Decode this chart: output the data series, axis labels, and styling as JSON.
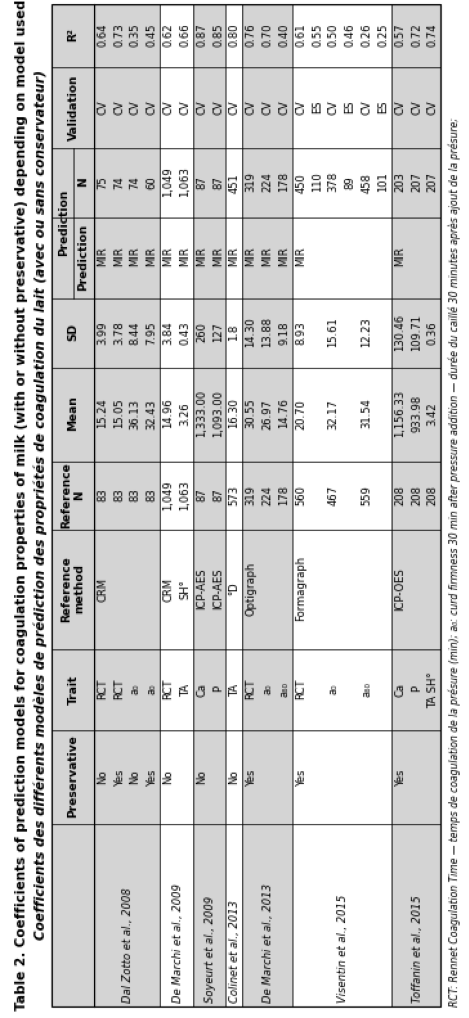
{
  "title_line1": "Table 2. Coefficients of prediction models for coagulation properties of milk (with or without preservative) depending on model used",
  "title_line2": "Coefficients des différents modèles de prédiction des propriétés de coagulation du lait (avec ou sans conservateur)",
  "footnote": "RCT: Rennet Coagulation Time — temps de coagulation de la présure (min); a₀: curd firmness 30 min after pressure addition — durée du caillé 30 minutes après ajout de la présure;",
  "bg_gray": "#d4d4d4",
  "bg_white": "#ffffff",
  "header_top_labels": [
    "",
    "Preservative",
    "Trait",
    "Reference\nmethod",
    "Reference\nN",
    "Mean",
    "SD",
    "Prediction\nPrediction",
    "N",
    "Validation",
    "R²"
  ],
  "col_header_split": [
    false,
    false,
    false,
    false,
    false,
    false,
    false,
    true,
    false,
    false,
    false
  ],
  "row_groups": [
    {
      "author": "Dal Zotto et al., 2008",
      "bg": "gray",
      "rows": [
        {
          "preservative": "No",
          "trait": "RCT",
          "ref_method": "CRM",
          "ref_n": "83",
          "mean": "15.24",
          "sd": "3.99",
          "pred": "MIR",
          "pred_n": "75",
          "valid": "CV",
          "r2": "0.64"
        },
        {
          "preservative": "Yes",
          "trait": "RCT",
          "ref_method": "",
          "ref_n": "83",
          "mean": "15.05",
          "sd": "3.78",
          "pred": "MIR",
          "pred_n": "74",
          "valid": "CV",
          "r2": "0.73"
        },
        {
          "preservative": "No",
          "trait": "a₀",
          "ref_method": "",
          "ref_n": "83",
          "mean": "36.13",
          "sd": "8.44",
          "pred": "MIR",
          "pred_n": "74",
          "valid": "CV",
          "r2": "0.35"
        },
        {
          "preservative": "Yes",
          "trait": "a₀",
          "ref_method": "",
          "ref_n": "83",
          "mean": "32.43",
          "sd": "7.95",
          "pred": "MIR",
          "pred_n": "60",
          "valid": "CV",
          "r2": "0.45"
        }
      ]
    },
    {
      "author": "De Marchi et al., 2009",
      "bg": "white",
      "rows": [
        {
          "preservative": "No",
          "trait": "RCT",
          "ref_method": "CRM",
          "ref_n": "1,049",
          "mean": "14.96",
          "sd": "3.84",
          "pred": "MIR",
          "pred_n": "1,049",
          "valid": "CV",
          "r2": "0.62"
        },
        {
          "preservative": "",
          "trait": "TA",
          "ref_method": "SH°",
          "ref_n": "1,063",
          "mean": "3.26",
          "sd": "0.43",
          "pred": "MIR",
          "pred_n": "1,063",
          "valid": "CV",
          "r2": "0.66"
        }
      ]
    },
    {
      "author": "Soyeurt et al., 2009",
      "bg": "gray",
      "rows": [
        {
          "preservative": "No",
          "trait": "Ca",
          "ref_method": "ICP-AES",
          "ref_n": "87",
          "mean": "1,333.00",
          "sd": "260",
          "pred": "MIR",
          "pred_n": "87",
          "valid": "CV",
          "r2": "0.87"
        },
        {
          "preservative": "",
          "trait": "P",
          "ref_method": "ICP-AES",
          "ref_n": "87",
          "mean": "1,093.00",
          "sd": "127",
          "pred": "MIR",
          "pred_n": "87",
          "valid": "CV",
          "r2": "0.85"
        }
      ]
    },
    {
      "author": "Colinet et al., 2013",
      "bg": "white",
      "rows": [
        {
          "preservative": "No",
          "trait": "TA",
          "ref_method": "°D",
          "ref_n": "573",
          "mean": "16.30",
          "sd": "1.8",
          "pred": "MIR",
          "pred_n": "451",
          "valid": "CV",
          "r2": "0.80"
        }
      ]
    },
    {
      "author": "De Marchi et al., 2013",
      "bg": "gray",
      "rows": [
        {
          "preservative": "Yes",
          "trait": "RCT",
          "ref_method": "Optigraph",
          "ref_n": "319",
          "mean": "30.55",
          "sd": "14.30",
          "pred": "MIR",
          "pred_n": "319",
          "valid": "CV",
          "r2": "0.76"
        },
        {
          "preservative": "",
          "trait": "a₀",
          "ref_method": "",
          "ref_n": "224",
          "mean": "26.97",
          "sd": "13.88",
          "pred": "MIR",
          "pred_n": "224",
          "valid": "CV",
          "r2": "0.70"
        },
        {
          "preservative": "",
          "trait": "a₆₀",
          "ref_method": "",
          "ref_n": "178",
          "mean": "14.76",
          "sd": "9.18",
          "pred": "MIR",
          "pred_n": "178",
          "valid": "CV",
          "r2": "0.40"
        }
      ]
    },
    {
      "author": "Visentin et al., 2015",
      "bg": "white",
      "rows": [
        {
          "preservative": "Yes",
          "trait": "RCT",
          "ref_method": "Formagraph",
          "ref_n": "560",
          "mean": "20.70",
          "sd": "8.93",
          "pred": "MIR",
          "pred_n": "450",
          "valid": "CV",
          "r2": "0.61"
        },
        {
          "preservative": "",
          "trait": "",
          "ref_method": "",
          "ref_n": "",
          "mean": "",
          "sd": "",
          "pred": "",
          "pred_n": "110",
          "valid": "ES",
          "r2": "0.55"
        },
        {
          "preservative": "",
          "trait": "a₀",
          "ref_method": "",
          "ref_n": "467",
          "mean": "32.17",
          "sd": "15.61",
          "pred": "",
          "pred_n": "378",
          "valid": "CV",
          "r2": "0.50"
        },
        {
          "preservative": "",
          "trait": "",
          "ref_method": "",
          "ref_n": "",
          "mean": "",
          "sd": "",
          "pred": "",
          "pred_n": "89",
          "valid": "ES",
          "r2": "0.46"
        },
        {
          "preservative": "",
          "trait": "a₆₀",
          "ref_method": "",
          "ref_n": "559",
          "mean": "31.54",
          "sd": "12.23",
          "pred": "",
          "pred_n": "458",
          "valid": "CV",
          "r2": "0.26"
        },
        {
          "preservative": "",
          "trait": "",
          "ref_method": "",
          "ref_n": "",
          "mean": "",
          "sd": "",
          "pred": "",
          "pred_n": "101",
          "valid": "ES",
          "r2": "0.25"
        }
      ]
    },
    {
      "author": "Toffanin et al., 2015",
      "bg": "gray",
      "rows": [
        {
          "preservative": "Yes",
          "trait": "Ca",
          "ref_method": "ICP-OES",
          "ref_n": "208",
          "mean": "1,156.33",
          "sd": "130.46",
          "pred": "MIR",
          "pred_n": "203",
          "valid": "CV",
          "r2": "0.57"
        },
        {
          "preservative": "",
          "trait": "P",
          "ref_method": "",
          "ref_n": "208",
          "mean": "933.98",
          "sd": "109.71",
          "pred": "",
          "pred_n": "207",
          "valid": "CV",
          "r2": "0.72"
        },
        {
          "preservative": "",
          "trait": "TA SH°",
          "ref_method": "",
          "ref_n": "208",
          "mean": "3.42",
          "sd": "0.36",
          "pred": "",
          "pred_n": "207",
          "valid": "CV",
          "r2": "0.74"
        }
      ]
    }
  ]
}
